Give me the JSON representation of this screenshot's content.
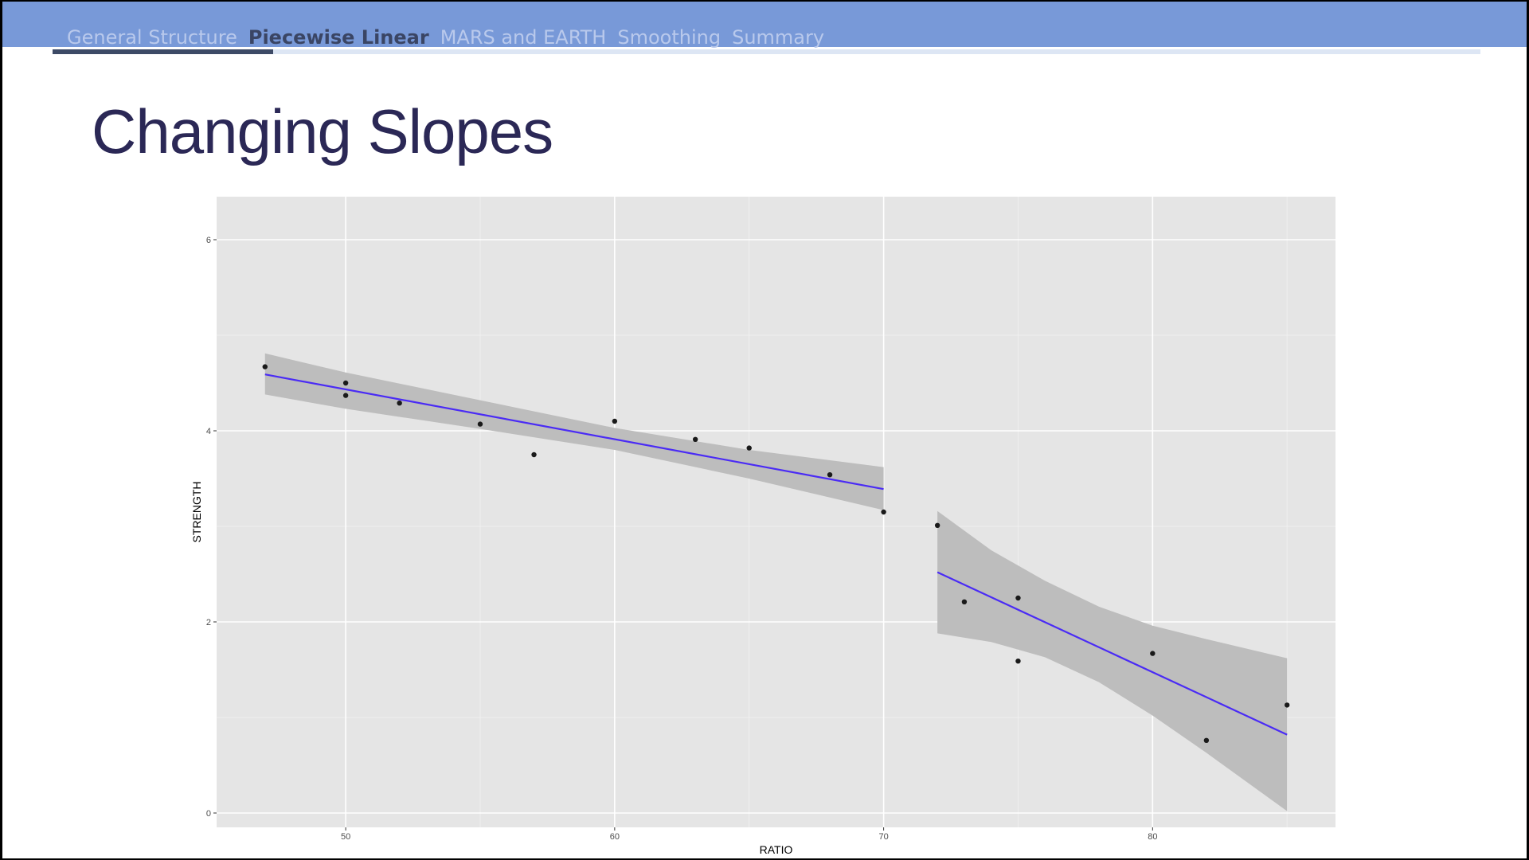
{
  "nav": {
    "items": [
      "General Structure",
      "Piecewise Linear",
      "MARS and EARTH",
      "Smoothing",
      "Summary"
    ],
    "active_index": 1,
    "progress": 0.155
  },
  "slide": {
    "title": "Changing Slopes"
  },
  "colors": {
    "topbar": "#7899d8",
    "title": "#2b2856",
    "panel": "#e5e5e5",
    "fit_line": "#4a2bf5",
    "ribbon": "#bdbdbd",
    "point": "#1a1a1a"
  },
  "chart_data": {
    "type": "scatter",
    "title": "",
    "xlabel": "RATIO",
    "ylabel": "STRENGTH",
    "xlim": [
      45.2,
      86.8
    ],
    "ylim": [
      -0.15,
      6.45
    ],
    "xticks": [
      50,
      60,
      70,
      80
    ],
    "yticks": [
      0,
      2,
      4,
      6
    ],
    "grid": true,
    "points": [
      {
        "x": 47,
        "y": 4.67
      },
      {
        "x": 50,
        "y": 4.5
      },
      {
        "x": 50,
        "y": 4.37
      },
      {
        "x": 52,
        "y": 4.29
      },
      {
        "x": 55,
        "y": 4.07
      },
      {
        "x": 57,
        "y": 3.75
      },
      {
        "x": 60,
        "y": 4.1
      },
      {
        "x": 63,
        "y": 3.91
      },
      {
        "x": 65,
        "y": 3.82
      },
      {
        "x": 68,
        "y": 3.54
      },
      {
        "x": 70,
        "y": 3.15
      },
      {
        "x": 72,
        "y": 3.01
      },
      {
        "x": 73,
        "y": 2.21
      },
      {
        "x": 75,
        "y": 2.25
      },
      {
        "x": 75,
        "y": 1.59
      },
      {
        "x": 80,
        "y": 1.67
      },
      {
        "x": 82,
        "y": 0.76
      },
      {
        "x": 85,
        "y": 1.13
      }
    ],
    "series": [
      {
        "name": "",
        "fit": [
          [
            47,
            4.59
          ],
          [
            70,
            3.39
          ]
        ],
        "band_upper": [
          [
            47,
            4.81
          ],
          [
            50,
            4.61
          ],
          [
            55,
            4.32
          ],
          [
            60,
            4.03
          ],
          [
            65,
            3.8
          ],
          [
            70,
            3.62
          ]
        ],
        "band_lower": [
          [
            47,
            4.38
          ],
          [
            50,
            4.23
          ],
          [
            55,
            4.02
          ],
          [
            60,
            3.8
          ],
          [
            65,
            3.5
          ],
          [
            70,
            3.17
          ]
        ]
      },
      {
        "name": "",
        "fit": [
          [
            72,
            2.52
          ],
          [
            85,
            0.82
          ]
        ],
        "band_upper": [
          [
            72,
            3.16
          ],
          [
            74,
            2.75
          ],
          [
            76,
            2.43
          ],
          [
            78,
            2.16
          ],
          [
            80,
            1.96
          ],
          [
            82,
            1.82
          ],
          [
            85,
            1.62
          ]
        ],
        "band_lower": [
          [
            72,
            1.88
          ],
          [
            74,
            1.79
          ],
          [
            76,
            1.63
          ],
          [
            78,
            1.37
          ],
          [
            80,
            1.02
          ],
          [
            82,
            0.63
          ],
          [
            85,
            0.02
          ]
        ]
      }
    ]
  }
}
